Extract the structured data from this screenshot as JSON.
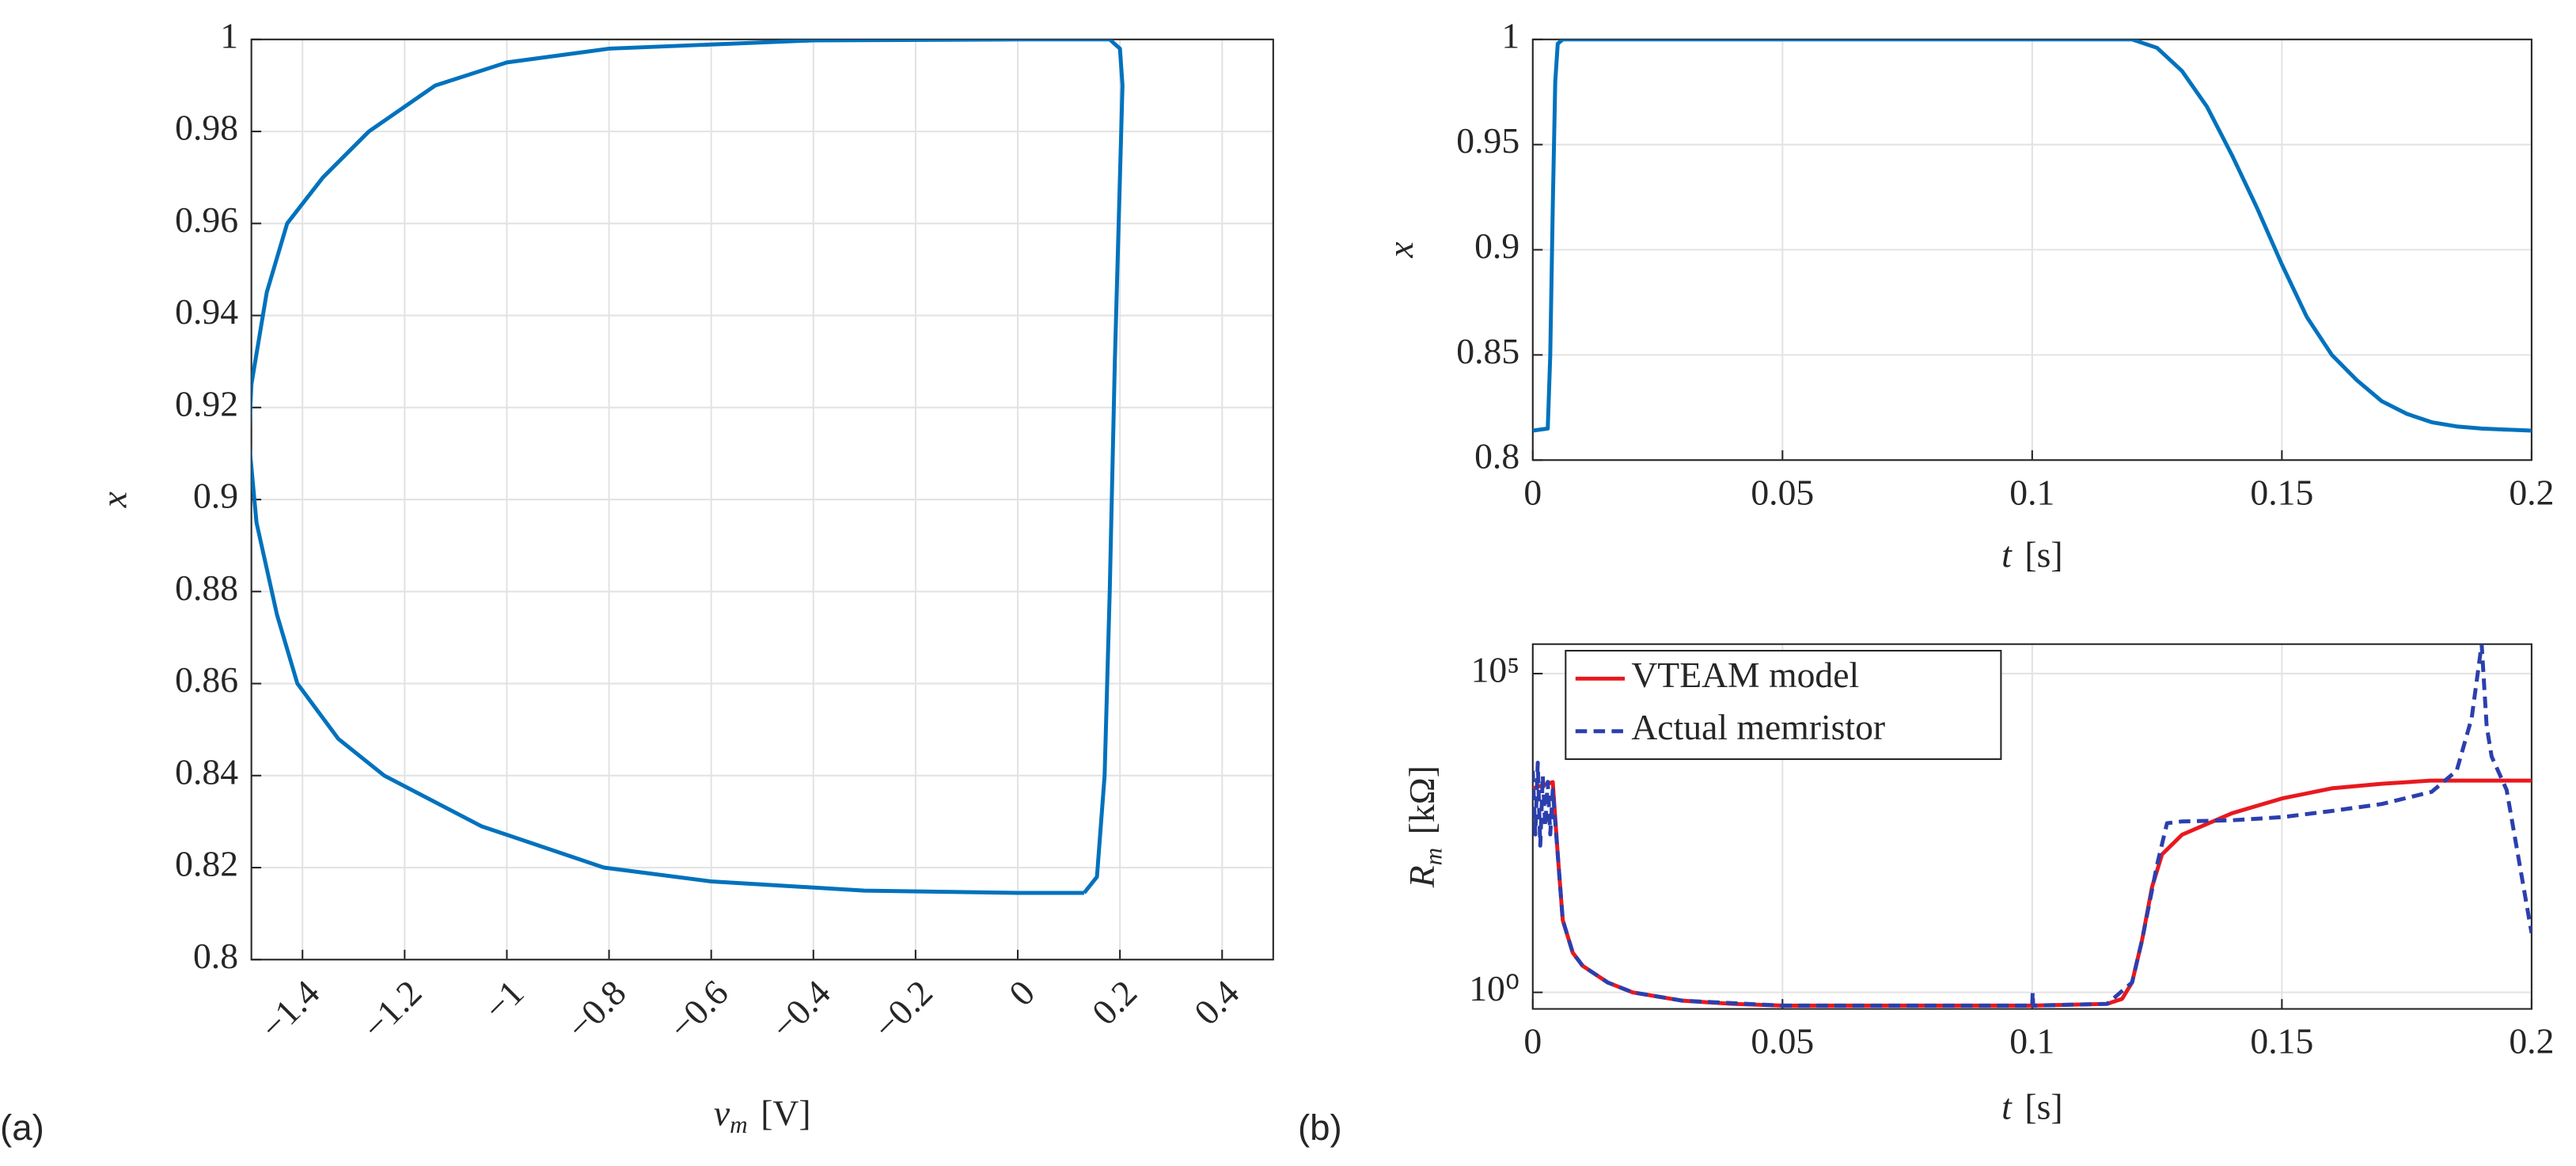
{
  "chart_data": [
    {
      "type": "line",
      "panel": "(a)",
      "xlabel": "v",
      "xlabel_subscript": "m",
      "xlabel_unit": "[V]",
      "ylabel": "x",
      "x": [
        0.13,
        0.155,
        0.17,
        0.18,
        0.19,
        0.2,
        0.205,
        0.2,
        0.18,
        0.0,
        -0.4,
        -0.8,
        -1.0,
        -1.14,
        -1.27,
        -1.36,
        -1.43,
        -1.47,
        -1.5,
        -1.505,
        -1.49,
        -1.45,
        -1.41,
        -1.33,
        -1.24,
        -1.05,
        -0.81,
        -0.6,
        -0.3,
        0.0,
        0.13
      ],
      "series": [
        {
          "color": "#0072bd",
          "values": [
            0.8145,
            0.818,
            0.84,
            0.88,
            0.93,
            0.97,
            0.99,
            0.998,
            1.0,
            1.0,
            0.9998,
            0.998,
            0.995,
            0.99,
            0.98,
            0.97,
            0.96,
            0.945,
            0.925,
            0.913,
            0.895,
            0.875,
            0.86,
            0.848,
            0.84,
            0.829,
            0.82,
            0.817,
            0.815,
            0.8145,
            0.8145
          ]
        }
      ],
      "xlim": [
        -1.5,
        0.5
      ],
      "xticks": [
        {
          "value": -1.4,
          "label": "−1.4"
        },
        {
          "value": -1.2,
          "label": "−1.2"
        },
        {
          "value": -1,
          "label": "−1"
        },
        {
          "value": -0.8,
          "label": "−0.8"
        },
        {
          "value": -0.6,
          "label": "−0.6"
        },
        {
          "value": -0.4,
          "label": "−0.4"
        },
        {
          "value": -0.2,
          "label": "−0.2"
        },
        0,
        0.2,
        0.4
      ],
      "ylim": [
        0.8,
        1
      ],
      "yticks": [
        0.8,
        0.82,
        0.84,
        0.86,
        0.88,
        0.9,
        0.92,
        0.94,
        0.96,
        0.98,
        1
      ],
      "grid": true
    },
    {
      "type": "line",
      "xlabel": "t",
      "xlabel_unit": "[s]",
      "ylabel": "x",
      "x": [
        0,
        0.003,
        0.0035,
        0.004,
        0.0045,
        0.005,
        0.006,
        0.12,
        0.125,
        0.13,
        0.135,
        0.14,
        0.145,
        0.15,
        0.155,
        0.16,
        0.165,
        0.17,
        0.175,
        0.18,
        0.185,
        0.19,
        0.195,
        0.2
      ],
      "series": [
        {
          "color": "#0072bd",
          "values": [
            0.814,
            0.815,
            0.85,
            0.92,
            0.98,
            0.998,
            1,
            1,
            0.996,
            0.985,
            0.968,
            0.945,
            0.92,
            0.893,
            0.868,
            0.85,
            0.838,
            0.828,
            0.822,
            0.818,
            0.816,
            0.815,
            0.8145,
            0.814
          ]
        }
      ],
      "xlim": [
        0,
        0.2
      ],
      "xticks": [
        0,
        0.05,
        0.1,
        0.15,
        0.2
      ],
      "ylim": [
        0.8,
        1
      ],
      "yticks": [
        0.8,
        0.85,
        0.9,
        0.95,
        1
      ],
      "grid": true
    },
    {
      "type": "line",
      "panel": "(b)",
      "xlabel": "t",
      "xlabel_unit": "[s]",
      "ylabel": "R",
      "ylabel_subscript": "m",
      "ylabel_unit": "[kΩ]",
      "log_y": true,
      "legend": "upper left",
      "series": [
        {
          "name": "VTEAM model",
          "color": "#e8191e",
          "dash": false,
          "x": [
            0,
            0.002,
            0.004,
            0.005,
            0.006,
            0.008,
            0.01,
            0.015,
            0.02,
            0.03,
            0.04,
            0.05,
            0.1,
            0.115,
            0.118,
            0.12,
            0.122,
            0.124,
            0.126,
            0.13,
            0.14,
            0.15,
            0.16,
            0.17,
            0.18,
            0.19,
            0.2
          ],
          "values": [
            1585,
            1770,
            1990,
            146,
            13.6,
            4.2,
            2.6,
            1.43,
            1.0,
            0.74,
            0.66,
            0.62,
            0.62,
            0.66,
            0.79,
            1.43,
            6.6,
            45,
            146,
            297,
            645,
            1100,
            1585,
            1870,
            2100,
            2100,
            2100
          ]
        },
        {
          "name": "Actual memristor",
          "color": "#2b3fae",
          "dash": true,
          "x": [
            0,
            0.0005,
            0.001,
            0.0015,
            0.002,
            0.0025,
            0.003,
            0.0035,
            0.004,
            0.005,
            0.006,
            0.008,
            0.01,
            0.015,
            0.02,
            0.03,
            0.05,
            0.1,
            0.1001,
            0.1002,
            0.115,
            0.12,
            0.122,
            0.125,
            0.127,
            0.13,
            0.14,
            0.15,
            0.16,
            0.17,
            0.18,
            0.185,
            0.188,
            0.19,
            0.191,
            0.192,
            0.195,
            0.2
          ],
          "values": [
            3000,
            300,
            4000,
            200,
            2500,
            400,
            2000,
            300,
            1500,
            146,
            13.6,
            4.2,
            2.6,
            1.43,
            1.0,
            0.74,
            0.62,
            0.62,
            1.0,
            0.62,
            0.66,
            1.43,
            6.6,
            100,
            450,
            480,
            500,
            560,
            700,
            900,
            1400,
            3000,
            20000,
            290000,
            15000,
            5000,
            1500,
            8.5
          ]
        }
      ],
      "xlim": [
        0,
        0.2
      ],
      "xticks": [
        0,
        0.05,
        0.1,
        0.15,
        0.2
      ],
      "ylim": [
        0.55,
        290000
      ],
      "yticks": [
        {
          "value": 1,
          "label": "10⁰"
        },
        {
          "value": 100000,
          "label": "10⁵"
        }
      ],
      "grid": true
    }
  ]
}
